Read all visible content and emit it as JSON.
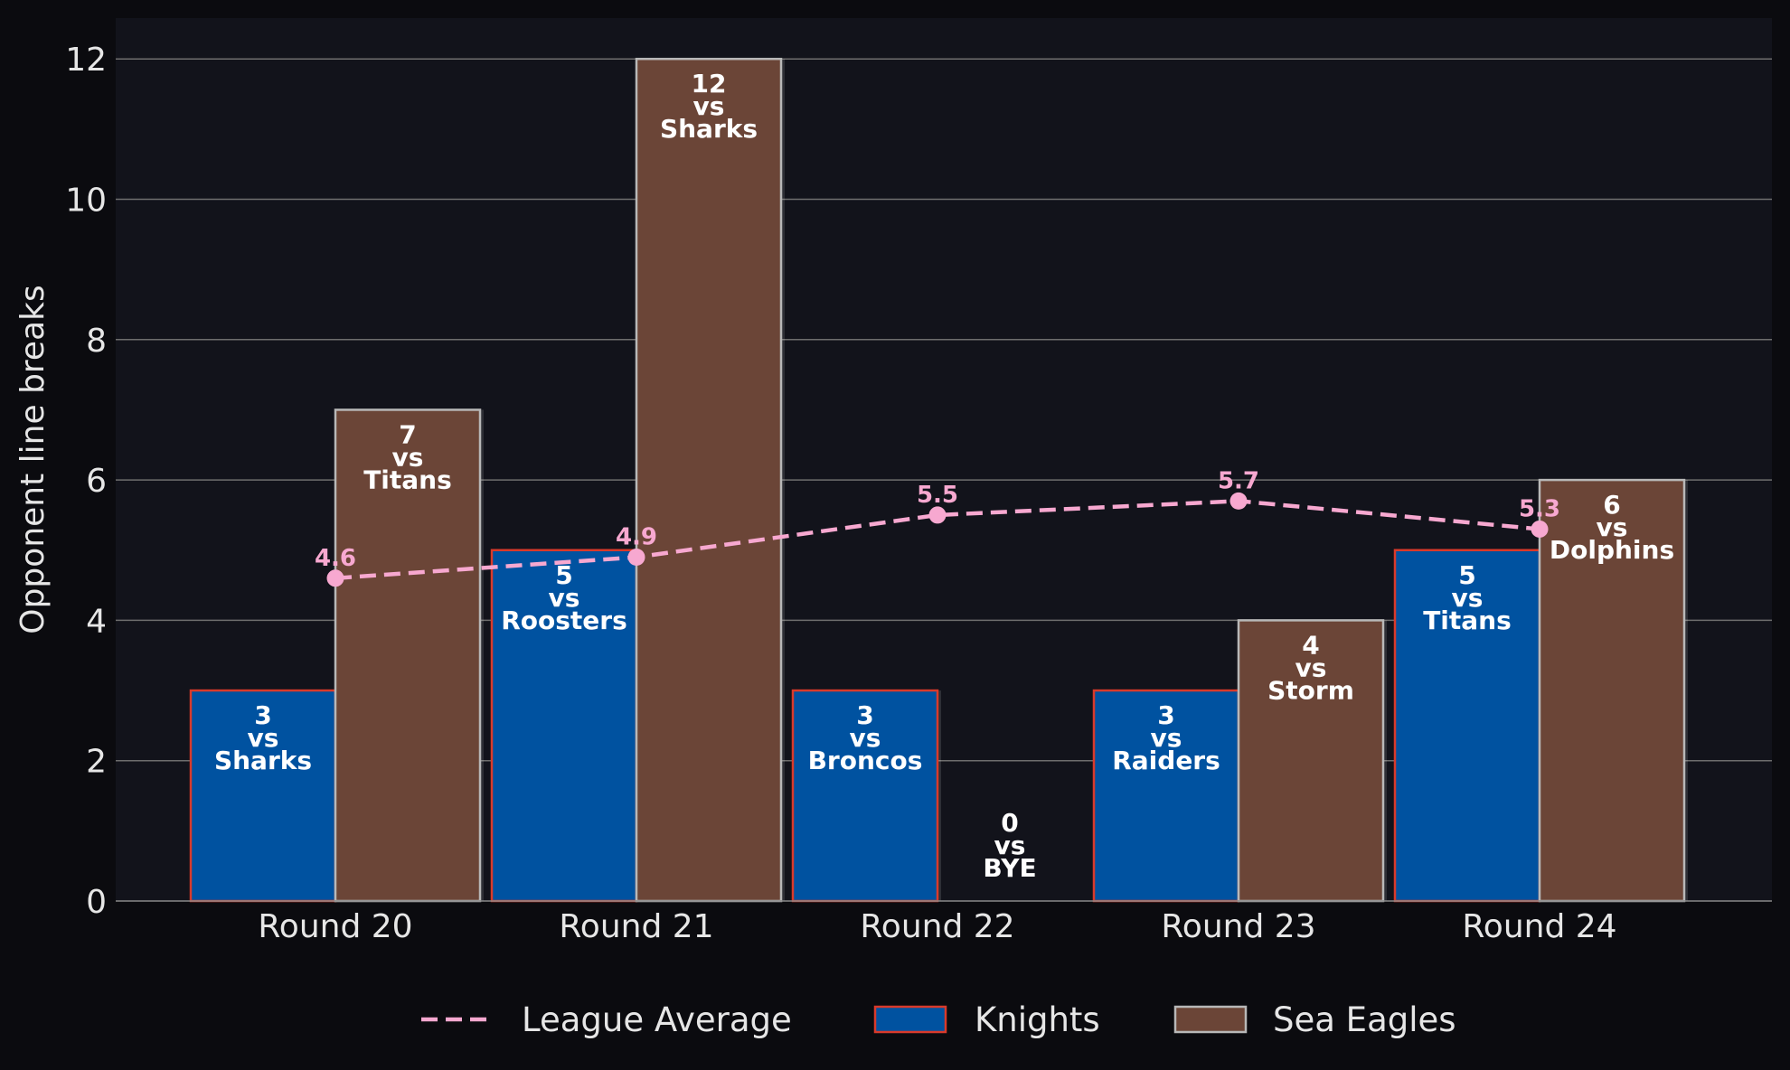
{
  "chart_data": {
    "type": "bar",
    "title": "",
    "xlabel": "",
    "ylabel": "Opponent line breaks",
    "ylim": [
      0,
      12.6
    ],
    "yticks": [
      0,
      2,
      4,
      6,
      8,
      10,
      12
    ],
    "grid": true,
    "legend_position": "bottom",
    "categories": [
      "Round 20",
      "Round 21",
      "Round 22",
      "Round 23",
      "Round 24"
    ],
    "series": [
      {
        "name": "Knights",
        "color": "#0052a0",
        "edge_color": "#d93a2b",
        "values": [
          3,
          5,
          3,
          3,
          5
        ],
        "labels": [
          [
            "3",
            "vs",
            "Sharks"
          ],
          [
            "5",
            "vs",
            "Roosters"
          ],
          [
            "3",
            "vs",
            "Broncos"
          ],
          [
            "3",
            "vs",
            "Raiders"
          ],
          [
            "5",
            "vs",
            "Titans"
          ]
        ]
      },
      {
        "name": "Sea Eagles",
        "color": "#6b4537",
        "edge_color": "#b8b8b8",
        "values": [
          7,
          12,
          0,
          4,
          6
        ],
        "labels": [
          [
            "7",
            "vs",
            "Titans"
          ],
          [
            "12",
            "vs",
            "Sharks"
          ],
          [
            "0",
            "vs",
            "BYE"
          ],
          [
            "4",
            "vs",
            "Storm"
          ],
          [
            "6",
            "vs",
            "Dolphins"
          ]
        ]
      }
    ],
    "league_average": {
      "name": "League Average",
      "color": "#f7a8d0",
      "style": "dashed",
      "values": [
        4.6,
        4.9,
        5.5,
        5.7,
        5.3
      ],
      "labels": [
        "4.6",
        "4.9",
        "5.5",
        "5.7",
        "5.3"
      ]
    },
    "colors": {
      "background": "#0b0b0f",
      "plot_background": "#12131b",
      "grid": "#6e6e6e",
      "text": "#e6e6e6"
    }
  }
}
